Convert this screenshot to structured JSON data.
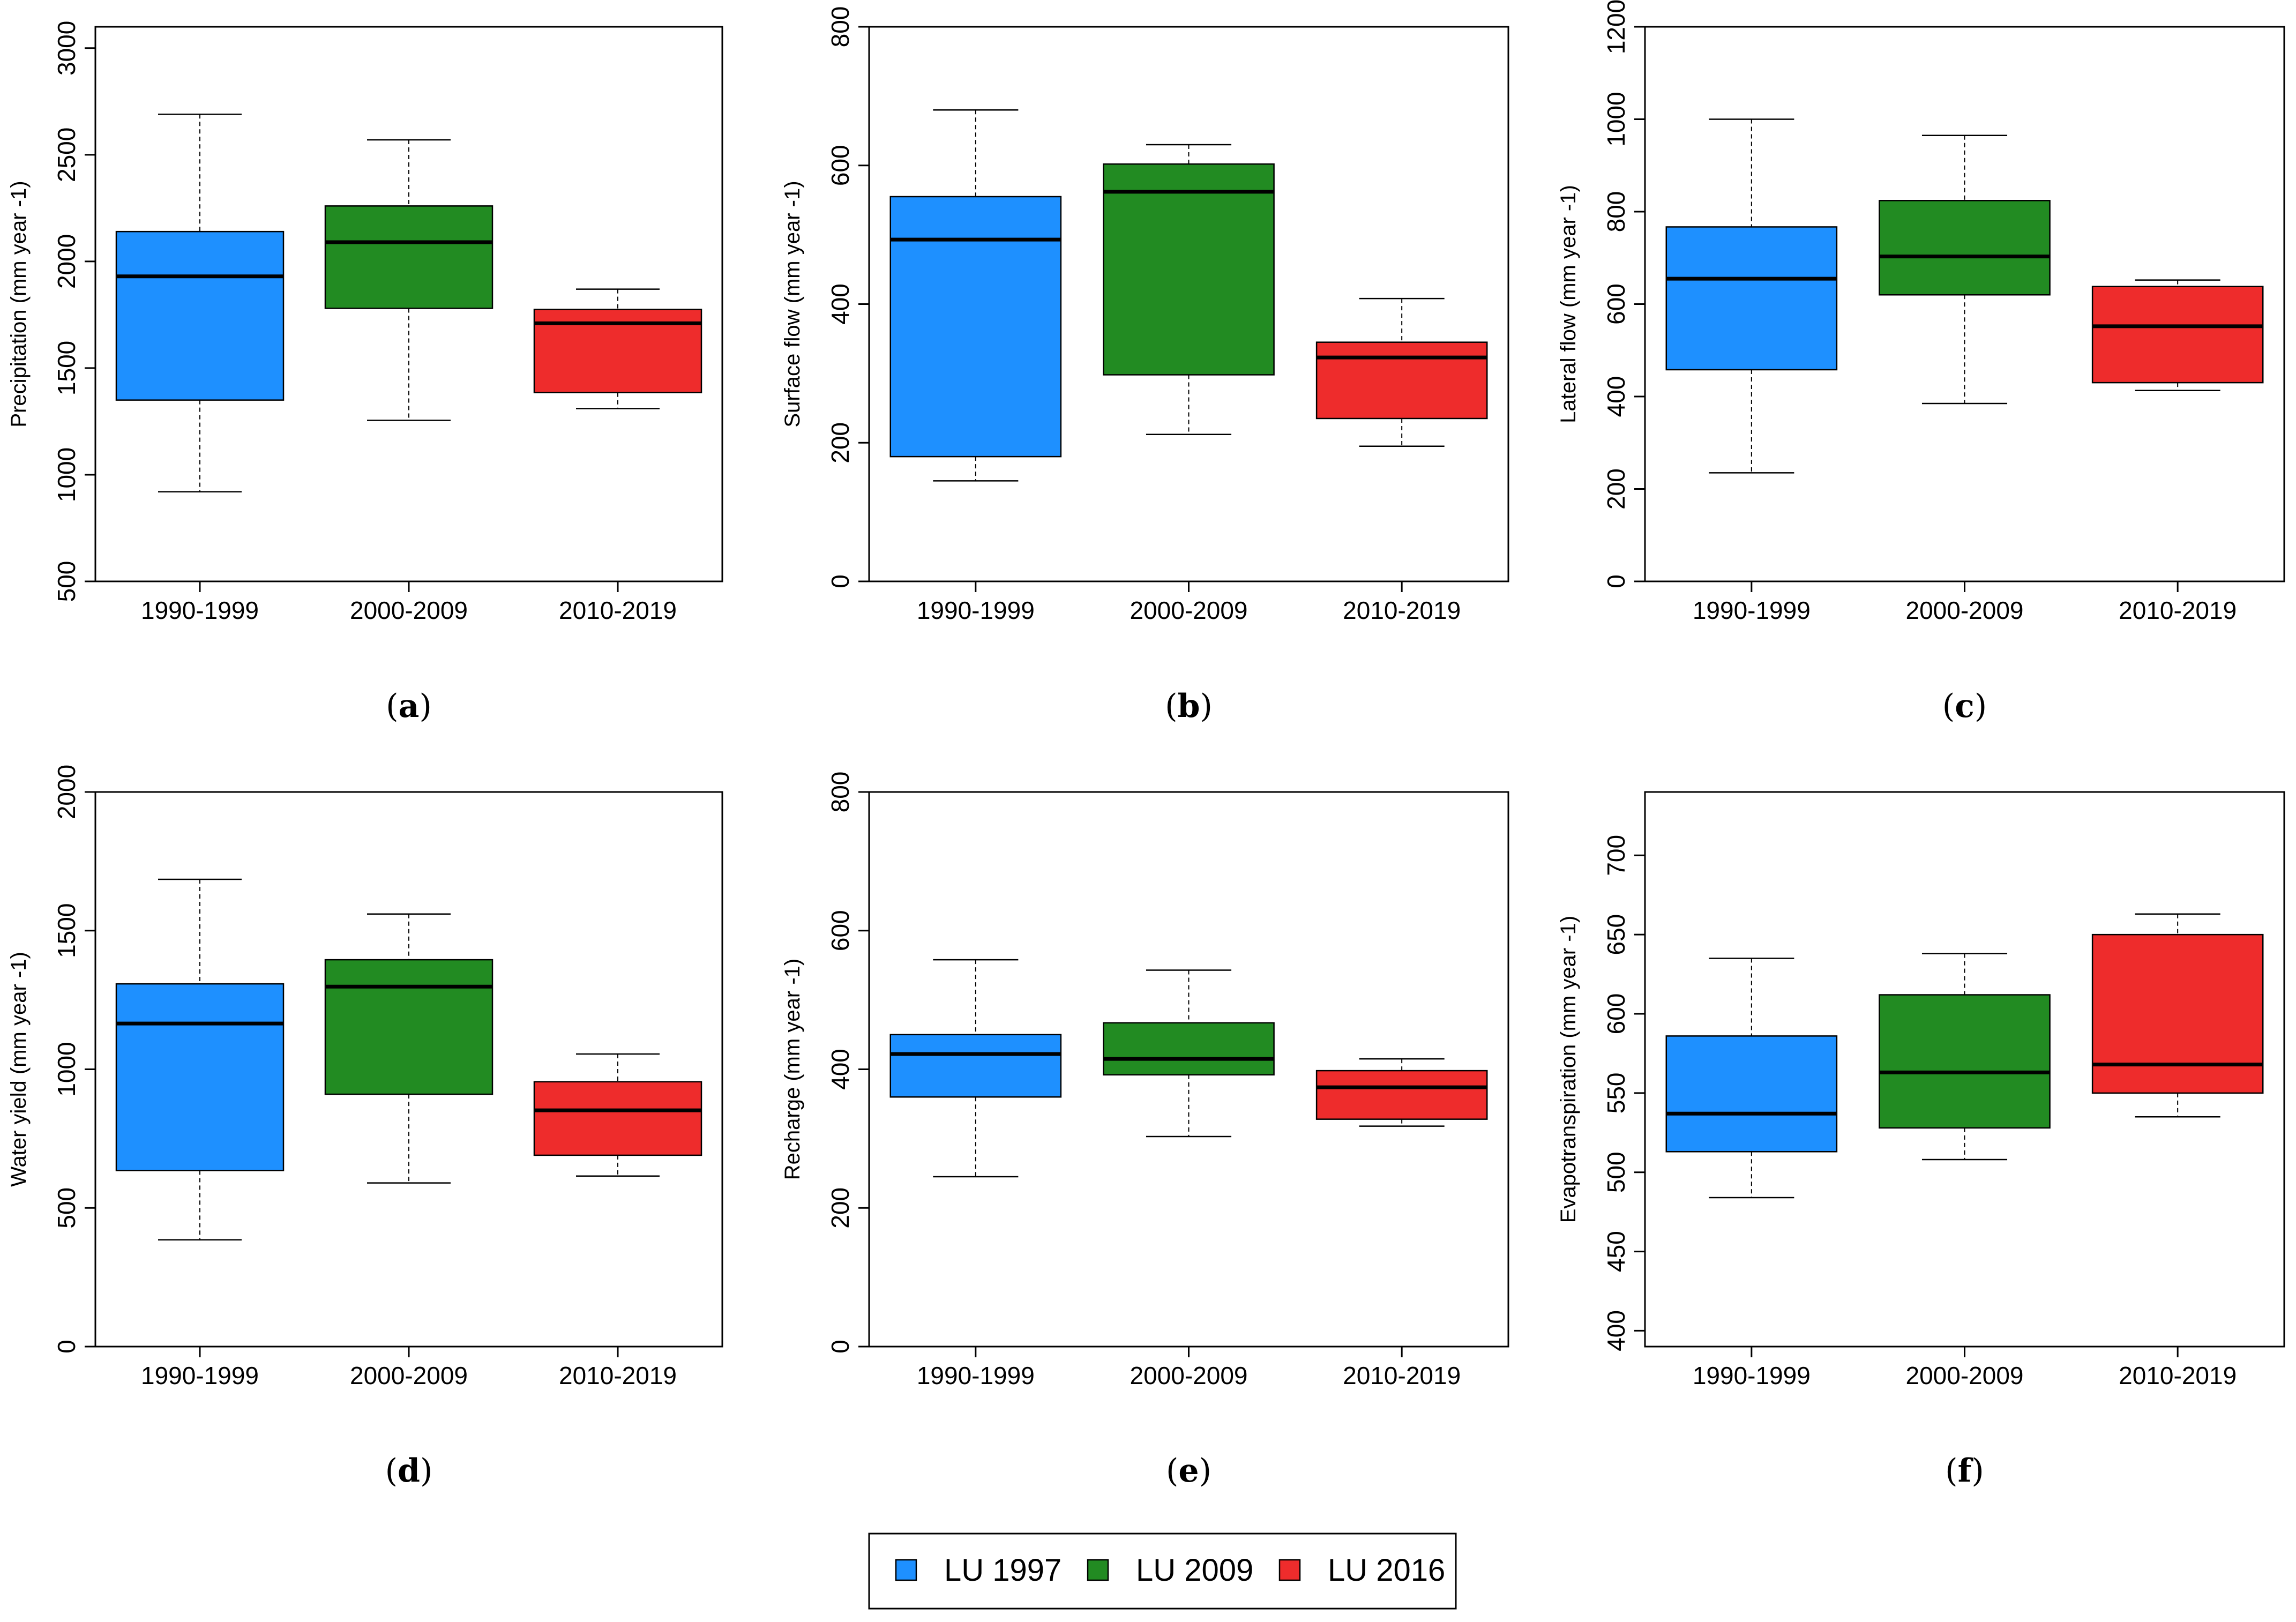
{
  "colors": {
    "LU 1997": "#1E90FF",
    "LU 2009": "#228B22",
    "LU 2016": "#EE2C2C"
  },
  "legend": {
    "entries": [
      {
        "label": "LU 1997",
        "color": "#1E90FF"
      },
      {
        "label": "LU 2009",
        "color": "#228B22"
      },
      {
        "label": "LU 2016",
        "color": "#EE2C2C"
      }
    ],
    "placement": "bottom-center"
  },
  "chart_data": [
    {
      "id": "a",
      "type": "boxplot",
      "panel_label": "(a)",
      "ylabel": "Precipitation (mm year -1)",
      "ylim": [
        500,
        3100
      ],
      "yticks": [
        500,
        1000,
        1500,
        2000,
        2500,
        3000
      ],
      "categories": [
        "1990-1999",
        "2000-2009",
        "2010-2019"
      ],
      "series_names": [
        "LU 1997",
        "LU 2009",
        "LU 2016"
      ],
      "boxes": [
        {
          "min": 920,
          "q1": 1350,
          "median": 1930,
          "q3": 2140,
          "max": 2690
        },
        {
          "min": 1255,
          "q1": 1780,
          "median": 2090,
          "q3": 2260,
          "max": 2570
        },
        {
          "min": 1310,
          "q1": 1385,
          "median": 1710,
          "q3": 1775,
          "max": 1870
        }
      ]
    },
    {
      "id": "b",
      "type": "boxplot",
      "panel_label": "(b)",
      "ylabel": "Surface flow (mm year -1)",
      "ylim": [
        0,
        800
      ],
      "yticks": [
        0,
        200,
        400,
        600,
        800
      ],
      "categories": [
        "1990-1999",
        "2000-2009",
        "2010-2019"
      ],
      "series_names": [
        "LU 1997",
        "LU 2009",
        "LU 2016"
      ],
      "boxes": [
        {
          "min": 145,
          "q1": 180,
          "median": 493,
          "q3": 555,
          "max": 680
        },
        {
          "min": 212,
          "q1": 298,
          "median": 562,
          "q3": 602,
          "max": 630
        },
        {
          "min": 195,
          "q1": 235,
          "median": 323,
          "q3": 345,
          "max": 408
        }
      ]
    },
    {
      "id": "c",
      "type": "boxplot",
      "panel_label": "(c)",
      "ylabel": "Lateral flow (mm year -1)",
      "ylim": [
        0,
        1200
      ],
      "yticks": [
        0,
        200,
        400,
        600,
        800,
        1000,
        1200
      ],
      "categories": [
        "1990-1999",
        "2000-2009",
        "2010-2019"
      ],
      "series_names": [
        "LU 1997",
        "LU 2009",
        "LU 2016"
      ],
      "boxes": [
        {
          "min": 235,
          "q1": 458,
          "median": 655,
          "q3": 767,
          "max": 1000
        },
        {
          "min": 385,
          "q1": 620,
          "median": 703,
          "q3": 824,
          "max": 965
        },
        {
          "min": 413,
          "q1": 430,
          "median": 552,
          "q3": 638,
          "max": 652
        }
      ]
    },
    {
      "id": "d",
      "type": "boxplot",
      "panel_label": "(d)",
      "ylabel": "Water yield (mm year -1)",
      "ylim": [
        0,
        2000
      ],
      "yticks": [
        0,
        500,
        1000,
        1500,
        2000
      ],
      "categories": [
        "1990-1999",
        "2000-2009",
        "2010-2019"
      ],
      "series_names": [
        "LU 1997",
        "LU 2009",
        "LU 2016"
      ],
      "boxes": [
        {
          "min": 385,
          "q1": 635,
          "median": 1165,
          "q3": 1308,
          "max": 1685
        },
        {
          "min": 590,
          "q1": 910,
          "median": 1298,
          "q3": 1395,
          "max": 1560
        },
        {
          "min": 615,
          "q1": 690,
          "median": 852,
          "q3": 955,
          "max": 1055
        }
      ]
    },
    {
      "id": "e",
      "type": "boxplot",
      "panel_label": "(e)",
      "ylabel": "Recharge (mm year -1)",
      "ylim": [
        0,
        800
      ],
      "yticks": [
        0,
        200,
        400,
        600,
        800
      ],
      "categories": [
        "1990-1999",
        "2000-2009",
        "2010-2019"
      ],
      "series_names": [
        "LU 1997",
        "LU 2009",
        "LU 2016"
      ],
      "boxes": [
        {
          "min": 245,
          "q1": 360,
          "median": 422,
          "q3": 450,
          "max": 558
        },
        {
          "min": 303,
          "q1": 392,
          "median": 415,
          "q3": 467,
          "max": 543
        },
        {
          "min": 318,
          "q1": 328,
          "median": 374,
          "q3": 398,
          "max": 415
        }
      ]
    },
    {
      "id": "f",
      "type": "boxplot",
      "panel_label": "(f)",
      "ylabel": "Evapotranspiration (mm year -1)",
      "ylim": [
        390,
        740
      ],
      "yticks": [
        400,
        450,
        500,
        550,
        600,
        650,
        700
      ],
      "categories": [
        "1990-1999",
        "2000-2009",
        "2010-2019"
      ],
      "series_names": [
        "LU 1997",
        "LU 2009",
        "LU 2016"
      ],
      "boxes": [
        {
          "min": 484,
          "q1": 513,
          "median": 537,
          "q3": 586,
          "max": 635
        },
        {
          "min": 508,
          "q1": 528,
          "median": 563,
          "q3": 612,
          "max": 638
        },
        {
          "min": 535,
          "q1": 550,
          "median": 568,
          "q3": 650,
          "max": 663
        }
      ]
    }
  ]
}
